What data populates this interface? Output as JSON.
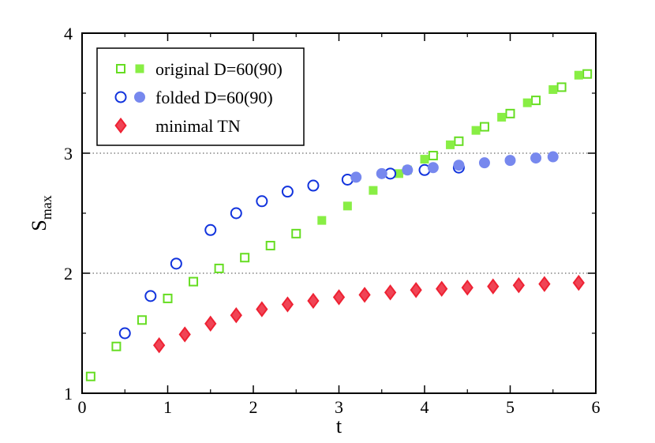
{
  "chart_data": {
    "type": "scatter",
    "title": "",
    "xlabel": "t",
    "ylabel": "S",
    "ylabel_sub": "max",
    "xlim": [
      0,
      6
    ],
    "ylim": [
      1,
      4
    ],
    "xticks": [
      "0",
      "1",
      "2",
      "3",
      "4",
      "5",
      "6"
    ],
    "yticks": [
      "1",
      "2",
      "3",
      "4"
    ],
    "gridlines_y": [
      2,
      3
    ],
    "legend": {
      "position": "top-left",
      "entries": [
        {
          "label": "original D=60(90)",
          "series": [
            "original D=60",
            "original D=90"
          ]
        },
        {
          "label": "folded D=60(90)",
          "series": [
            "folded D=60",
            "folded D=90"
          ]
        },
        {
          "label": "minimal TN",
          "series": [
            "minimal TN"
          ]
        }
      ]
    },
    "series": [
      {
        "name": "original D=60",
        "marker": "square-open",
        "color": "#66dd22",
        "x": [
          0.1,
          0.4,
          0.7,
          1.0,
          1.3,
          1.6,
          1.9,
          2.2,
          2.5,
          4.1,
          4.4,
          4.7,
          5.0,
          5.3,
          5.6,
          5.9
        ],
        "y": [
          1.14,
          1.39,
          1.61,
          1.79,
          1.93,
          2.04,
          2.13,
          2.23,
          2.33,
          2.98,
          3.1,
          3.22,
          3.33,
          3.44,
          3.55,
          3.66
        ]
      },
      {
        "name": "original D=90",
        "marker": "square-filled",
        "color": "#88ee44",
        "x": [
          2.8,
          3.1,
          3.4,
          3.7,
          3.8,
          4.0,
          4.3,
          4.6,
          4.9,
          5.2,
          5.5,
          5.8
        ],
        "y": [
          2.44,
          2.56,
          2.69,
          2.83,
          2.86,
          2.95,
          3.07,
          3.19,
          3.3,
          3.42,
          3.53,
          3.65
        ]
      },
      {
        "name": "folded D=60",
        "marker": "circle-open",
        "color": "#1133dd",
        "x": [
          0.5,
          0.8,
          1.1,
          1.5,
          1.8,
          2.1,
          2.4,
          2.7,
          3.1,
          3.6,
          4.0,
          4.4
        ],
        "y": [
          1.5,
          1.81,
          2.08,
          2.36,
          2.5,
          2.6,
          2.68,
          2.73,
          2.78,
          2.83,
          2.86,
          2.88
        ]
      },
      {
        "name": "folded D=90",
        "marker": "circle-filled",
        "color": "#7788ee",
        "x": [
          3.2,
          3.5,
          3.8,
          4.1,
          4.4,
          4.7,
          5.0,
          5.3,
          5.5
        ],
        "y": [
          2.8,
          2.83,
          2.86,
          2.88,
          2.9,
          2.92,
          2.94,
          2.96,
          2.97
        ]
      },
      {
        "name": "minimal TN",
        "marker": "diamond",
        "color": "#ee2233",
        "x": [
          0.9,
          1.2,
          1.5,
          1.8,
          2.1,
          2.4,
          2.7,
          3.0,
          3.3,
          3.6,
          3.9,
          4.2,
          4.5,
          4.8,
          5.1,
          5.4,
          5.8
        ],
        "y": [
          1.4,
          1.49,
          1.58,
          1.65,
          1.7,
          1.74,
          1.77,
          1.8,
          1.82,
          1.84,
          1.86,
          1.87,
          1.88,
          1.89,
          1.9,
          1.91,
          1.92
        ]
      }
    ]
  }
}
